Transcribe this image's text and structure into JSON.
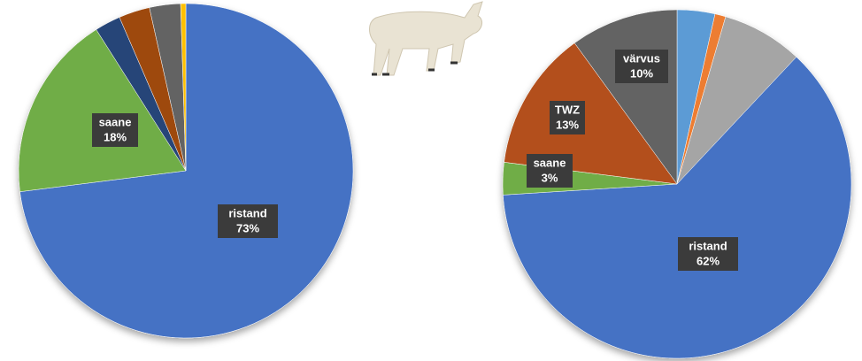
{
  "chart_data": [
    {
      "type": "pie",
      "categories": [
        "ristand",
        "saane",
        null,
        null,
        null,
        null
      ],
      "values": [
        73,
        18,
        2.5,
        3,
        3,
        0.5
      ],
      "value_labels": [
        "73%",
        "18%",
        null,
        null,
        null,
        null
      ],
      "colors": [
        "#4472c4",
        "#70ad47",
        "#264478",
        "#9e480e",
        "#636363",
        "#ffc000"
      ]
    },
    {
      "type": "pie",
      "categories": [
        null,
        null,
        null,
        "ristand",
        "saane",
        "TWZ",
        "värvus"
      ],
      "values": [
        3.5,
        1,
        7.5,
        62,
        3,
        13,
        10
      ],
      "value_labels": [
        null,
        null,
        null,
        "62%",
        "3%",
        "13%",
        "10%"
      ],
      "colors": [
        "#5b9bd5",
        "#ed7d31",
        "#a5a5a5",
        "#4472c4",
        "#70ad47",
        "#b3501a",
        "#636363"
      ]
    }
  ]
}
